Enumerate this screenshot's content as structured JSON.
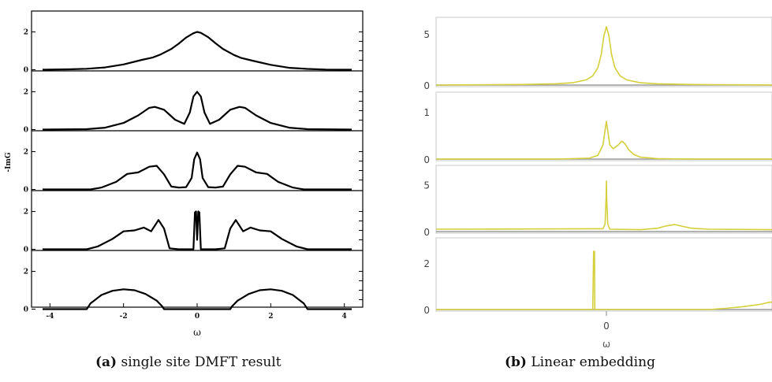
{
  "chart_data": [
    {
      "type": "line",
      "caption_label": "(a)",
      "caption_text": "single site DMFT result",
      "xlabel": "ω",
      "ylabel": "-ImG",
      "xlim": [
        -4.5,
        4.5
      ],
      "xticks": [
        "-4",
        "-2",
        "0",
        "2",
        "4"
      ],
      "line_color": "#000000",
      "panels": [
        {
          "ylim": [
            0,
            2.5
          ],
          "yticks": [
            "0",
            "2"
          ],
          "x": [
            -4.2,
            -3.5,
            -3.0,
            -2.5,
            -2.0,
            -1.5,
            -1.2,
            -1.0,
            -0.7,
            -0.5,
            -0.3,
            -0.1,
            0.0,
            0.1,
            0.3,
            0.5,
            0.7,
            1.0,
            1.2,
            1.5,
            2.0,
            2.5,
            3.0,
            3.5,
            4.2
          ],
          "y": [
            0.0,
            0.02,
            0.05,
            0.12,
            0.28,
            0.52,
            0.65,
            0.8,
            1.1,
            1.38,
            1.7,
            1.93,
            2.0,
            1.95,
            1.72,
            1.4,
            1.1,
            0.78,
            0.62,
            0.48,
            0.26,
            0.1,
            0.04,
            0.01,
            0.0
          ]
        },
        {
          "ylim": [
            0,
            2.5
          ],
          "yticks": [
            "0",
            "2"
          ],
          "x": [
            -4.2,
            -3.0,
            -2.5,
            -2.0,
            -1.6,
            -1.3,
            -1.15,
            -0.9,
            -0.6,
            -0.35,
            -0.2,
            -0.1,
            0.0,
            0.1,
            0.2,
            0.35,
            0.6,
            0.9,
            1.15,
            1.3,
            1.6,
            2.0,
            2.5,
            3.0,
            4.2
          ],
          "y": [
            0.0,
            0.02,
            0.1,
            0.35,
            0.75,
            1.15,
            1.2,
            1.05,
            0.52,
            0.3,
            0.9,
            1.75,
            2.0,
            1.75,
            0.9,
            0.3,
            0.52,
            1.05,
            1.2,
            1.15,
            0.75,
            0.35,
            0.1,
            0.02,
            0.0
          ]
        },
        {
          "ylim": [
            0,
            2.5
          ],
          "yticks": [
            "0",
            "2"
          ],
          "x": [
            -4.2,
            -2.9,
            -2.6,
            -2.2,
            -1.9,
            -1.6,
            -1.3,
            -1.1,
            -0.9,
            -0.7,
            -0.5,
            -0.3,
            -0.15,
            -0.08,
            0.0,
            0.08,
            0.15,
            0.3,
            0.5,
            0.7,
            0.9,
            1.1,
            1.3,
            1.6,
            1.9,
            2.2,
            2.6,
            2.9,
            4.2
          ],
          "y": [
            0.0,
            0.0,
            0.1,
            0.4,
            0.82,
            0.9,
            1.2,
            1.25,
            0.8,
            0.15,
            0.1,
            0.12,
            0.6,
            1.6,
            1.95,
            1.6,
            0.6,
            0.12,
            0.1,
            0.15,
            0.8,
            1.25,
            1.2,
            0.9,
            0.82,
            0.4,
            0.1,
            0.0,
            0.0
          ]
        },
        {
          "ylim": [
            0,
            2.5
          ],
          "yticks": [
            "0",
            "2"
          ],
          "x": [
            -4.2,
            -3.0,
            -2.7,
            -2.3,
            -2.0,
            -1.7,
            -1.45,
            -1.25,
            -1.05,
            -0.9,
            -0.75,
            -0.5,
            -0.1,
            -0.06,
            -0.03,
            0.0,
            0.03,
            0.06,
            0.1,
            0.5,
            0.75,
            0.9,
            1.05,
            1.25,
            1.45,
            1.7,
            2.0,
            2.3,
            2.7,
            3.0,
            4.2
          ],
          "y": [
            0.0,
            0.0,
            0.15,
            0.55,
            0.95,
            1.0,
            1.15,
            0.95,
            1.55,
            1.1,
            0.05,
            0.0,
            0.0,
            1.95,
            2.0,
            0.5,
            2.0,
            1.95,
            0.0,
            0.0,
            0.05,
            1.1,
            1.55,
            0.95,
            1.15,
            1.0,
            0.95,
            0.55,
            0.15,
            0.0,
            0.0
          ]
        },
        {
          "ylim": [
            0,
            2.5
          ],
          "yticks": [
            "0",
            "2"
          ],
          "x": [
            -4.2,
            -3.0,
            -2.9,
            -2.6,
            -2.3,
            -2.0,
            -1.7,
            -1.4,
            -1.1,
            -0.95,
            -0.9,
            0.9,
            0.95,
            1.1,
            1.4,
            1.7,
            2.0,
            2.3,
            2.6,
            2.9,
            3.0,
            4.2
          ],
          "y": [
            0.0,
            0.0,
            0.3,
            0.75,
            0.97,
            1.05,
            1.0,
            0.8,
            0.45,
            0.15,
            0.0,
            0.0,
            0.15,
            0.45,
            0.8,
            1.0,
            1.05,
            0.97,
            0.75,
            0.3,
            0.0,
            0.0
          ]
        }
      ]
    },
    {
      "type": "line",
      "caption_label": "(b)",
      "caption_text": "Linear embedding",
      "xlabel": "ω",
      "xlim": [
        -1.0,
        1.0
      ],
      "xticks": [
        "0"
      ],
      "line_color": "#d4cf3a",
      "panels": [
        {
          "ylim": [
            0,
            6.0
          ],
          "yticks": [
            "0",
            "5"
          ],
          "x": [
            -1.0,
            -0.5,
            -0.3,
            -0.2,
            -0.12,
            -0.08,
            -0.05,
            -0.03,
            -0.015,
            0.0,
            0.015,
            0.03,
            0.05,
            0.08,
            0.12,
            0.2,
            0.3,
            0.5,
            1.0
          ],
          "y": [
            0.0,
            0.05,
            0.12,
            0.22,
            0.5,
            0.9,
            1.7,
            3.0,
            4.8,
            5.7,
            4.8,
            3.0,
            1.7,
            0.9,
            0.5,
            0.22,
            0.12,
            0.05,
            0.0
          ]
        },
        {
          "ylim": [
            0,
            1.15
          ],
          "yticks": [
            "0",
            "1"
          ],
          "x": [
            -1.0,
            -0.3,
            -0.1,
            -0.05,
            -0.02,
            -0.01,
            0.0,
            0.008,
            0.02,
            0.04,
            0.07,
            0.09,
            0.11,
            0.13,
            0.16,
            0.2,
            0.3,
            0.5,
            1.0
          ],
          "y": [
            0.0,
            0.0,
            0.02,
            0.08,
            0.3,
            0.55,
            0.8,
            0.6,
            0.3,
            0.22,
            0.3,
            0.38,
            0.32,
            0.2,
            0.1,
            0.04,
            0.01,
            0.0,
            0.0
          ]
        },
        {
          "ylim": [
            0,
            5.8
          ],
          "yticks": [
            "0",
            "5"
          ],
          "x": [
            -1.0,
            -0.02,
            -0.008,
            -0.002,
            0.0,
            0.002,
            0.008,
            0.02,
            0.2,
            0.3,
            0.35,
            0.4,
            0.45,
            0.5,
            0.6,
            1.0
          ],
          "y": [
            0.25,
            0.3,
            0.8,
            3.5,
            5.4,
            3.5,
            0.8,
            0.25,
            0.2,
            0.35,
            0.6,
            0.75,
            0.55,
            0.35,
            0.25,
            0.2
          ]
        },
        {
          "ylim": [
            0,
            2.5
          ],
          "yticks": [
            "0",
            "2"
          ],
          "x": [
            -1.0,
            -0.08,
            -0.075,
            -0.07,
            -0.068,
            0.6,
            0.7,
            0.8,
            0.9,
            0.95,
            1.0
          ],
          "y": [
            0.0,
            0.0,
            2.5,
            2.5,
            0.0,
            0.0,
            0.05,
            0.12,
            0.22,
            0.3,
            0.35
          ]
        }
      ]
    }
  ]
}
